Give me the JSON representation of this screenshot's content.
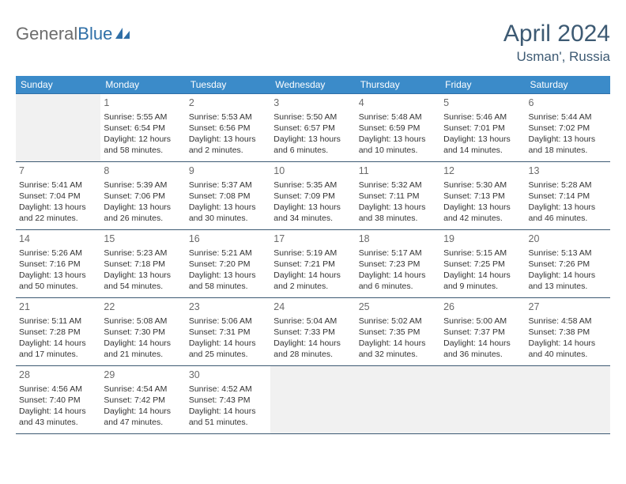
{
  "logo": {
    "text_gray": "General",
    "text_blue": "Blue"
  },
  "title": {
    "month_year": "April 2024",
    "location": "Usman', Russia"
  },
  "colors": {
    "header_bg": "#3b8bc9",
    "header_text": "#ffffff",
    "title_text": "#3d5a73",
    "cell_border": "#3d5a73",
    "empty_bg": "#f1f1f1",
    "daynum_color": "#6a6a6a",
    "body_text": "#333333"
  },
  "weekdays": [
    "Sunday",
    "Monday",
    "Tuesday",
    "Wednesday",
    "Thursday",
    "Friday",
    "Saturday"
  ],
  "weeks": [
    [
      null,
      {
        "n": "1",
        "sr": "5:55 AM",
        "ss": "6:54 PM",
        "dl": "12 hours and 58 minutes."
      },
      {
        "n": "2",
        "sr": "5:53 AM",
        "ss": "6:56 PM",
        "dl": "13 hours and 2 minutes."
      },
      {
        "n": "3",
        "sr": "5:50 AM",
        "ss": "6:57 PM",
        "dl": "13 hours and 6 minutes."
      },
      {
        "n": "4",
        "sr": "5:48 AM",
        "ss": "6:59 PM",
        "dl": "13 hours and 10 minutes."
      },
      {
        "n": "5",
        "sr": "5:46 AM",
        "ss": "7:01 PM",
        "dl": "13 hours and 14 minutes."
      },
      {
        "n": "6",
        "sr": "5:44 AM",
        "ss": "7:02 PM",
        "dl": "13 hours and 18 minutes."
      }
    ],
    [
      {
        "n": "7",
        "sr": "5:41 AM",
        "ss": "7:04 PM",
        "dl": "13 hours and 22 minutes."
      },
      {
        "n": "8",
        "sr": "5:39 AM",
        "ss": "7:06 PM",
        "dl": "13 hours and 26 minutes."
      },
      {
        "n": "9",
        "sr": "5:37 AM",
        "ss": "7:08 PM",
        "dl": "13 hours and 30 minutes."
      },
      {
        "n": "10",
        "sr": "5:35 AM",
        "ss": "7:09 PM",
        "dl": "13 hours and 34 minutes."
      },
      {
        "n": "11",
        "sr": "5:32 AM",
        "ss": "7:11 PM",
        "dl": "13 hours and 38 minutes."
      },
      {
        "n": "12",
        "sr": "5:30 AM",
        "ss": "7:13 PM",
        "dl": "13 hours and 42 minutes."
      },
      {
        "n": "13",
        "sr": "5:28 AM",
        "ss": "7:14 PM",
        "dl": "13 hours and 46 minutes."
      }
    ],
    [
      {
        "n": "14",
        "sr": "5:26 AM",
        "ss": "7:16 PM",
        "dl": "13 hours and 50 minutes."
      },
      {
        "n": "15",
        "sr": "5:23 AM",
        "ss": "7:18 PM",
        "dl": "13 hours and 54 minutes."
      },
      {
        "n": "16",
        "sr": "5:21 AM",
        "ss": "7:20 PM",
        "dl": "13 hours and 58 minutes."
      },
      {
        "n": "17",
        "sr": "5:19 AM",
        "ss": "7:21 PM",
        "dl": "14 hours and 2 minutes."
      },
      {
        "n": "18",
        "sr": "5:17 AM",
        "ss": "7:23 PM",
        "dl": "14 hours and 6 minutes."
      },
      {
        "n": "19",
        "sr": "5:15 AM",
        "ss": "7:25 PM",
        "dl": "14 hours and 9 minutes."
      },
      {
        "n": "20",
        "sr": "5:13 AM",
        "ss": "7:26 PM",
        "dl": "14 hours and 13 minutes."
      }
    ],
    [
      {
        "n": "21",
        "sr": "5:11 AM",
        "ss": "7:28 PM",
        "dl": "14 hours and 17 minutes."
      },
      {
        "n": "22",
        "sr": "5:08 AM",
        "ss": "7:30 PM",
        "dl": "14 hours and 21 minutes."
      },
      {
        "n": "23",
        "sr": "5:06 AM",
        "ss": "7:31 PM",
        "dl": "14 hours and 25 minutes."
      },
      {
        "n": "24",
        "sr": "5:04 AM",
        "ss": "7:33 PM",
        "dl": "14 hours and 28 minutes."
      },
      {
        "n": "25",
        "sr": "5:02 AM",
        "ss": "7:35 PM",
        "dl": "14 hours and 32 minutes."
      },
      {
        "n": "26",
        "sr": "5:00 AM",
        "ss": "7:37 PM",
        "dl": "14 hours and 36 minutes."
      },
      {
        "n": "27",
        "sr": "4:58 AM",
        "ss": "7:38 PM",
        "dl": "14 hours and 40 minutes."
      }
    ],
    [
      {
        "n": "28",
        "sr": "4:56 AM",
        "ss": "7:40 PM",
        "dl": "14 hours and 43 minutes."
      },
      {
        "n": "29",
        "sr": "4:54 AM",
        "ss": "7:42 PM",
        "dl": "14 hours and 47 minutes."
      },
      {
        "n": "30",
        "sr": "4:52 AM",
        "ss": "7:43 PM",
        "dl": "14 hours and 51 minutes."
      },
      null,
      null,
      null,
      null
    ]
  ],
  "labels": {
    "sunrise": "Sunrise:",
    "sunset": "Sunset:",
    "daylight": "Daylight:"
  }
}
